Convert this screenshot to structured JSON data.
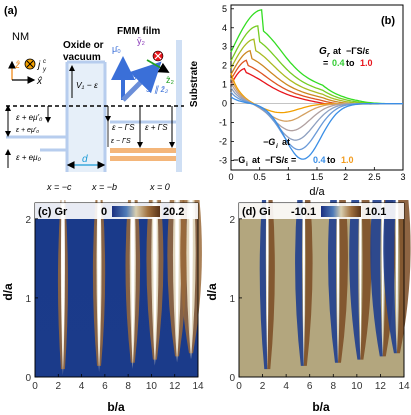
{
  "panel_a": {
    "label": "(a)",
    "nm": "NM",
    "oxide": [
      "Oxide or",
      "vacuum"
    ],
    "fmm": "FMM film",
    "substrate": "Substrate",
    "x_hat": "x̂",
    "z_hat": "ẑ",
    "jy": "j",
    "jy_sup": "c",
    "jy_sub": "y",
    "mu0": "μ̄₀",
    "y2": "ȳ₂",
    "z2": "ẑ₂",
    "theta": "θ",
    "s_par": "S ∥ ẑ₂",
    "v1": "V₁ − ε",
    "eps_left_top": "ε + eμ'₀",
    "eps_left_bot": "ε + eμ₀",
    "eps_left_mid": "ε + eμ'₀",
    "eps_gs_top": "ε − ΓS",
    "eps_gs_bot": "ε − ΓS",
    "eps_plus": "ε + ΓS",
    "d": "d",
    "x_c": "x = −c",
    "x_b": "x = −b",
    "x_0": "x = 0"
  },
  "panel_b": {
    "label": "(b)",
    "xlabel": "d/a",
    "gr_legend": [
      "G",
      "r",
      "at",
      "−ΓS/ε"
    ],
    "gr_range": [
      "= ",
      "0.4",
      " to ",
      "1.0"
    ],
    "gi_legend": [
      "−G",
      "i",
      "at",
      "−ΓS/ε = ",
      "0.4",
      " to ",
      "1.0"
    ],
    "xticks": [
      "0",
      "0.5",
      "1",
      "1.5",
      "2",
      "2.5",
      "3"
    ],
    "yticks": [
      "5",
      "4",
      "3",
      "2",
      "1",
      "0",
      "-1",
      "-2",
      "-3"
    ]
  },
  "panel_c": {
    "label": "(c) Gr",
    "min": "0",
    "max": "20.2",
    "xlabel": "b/a",
    "ylabel": "d/a",
    "xticks": [
      "0",
      "2",
      "4",
      "6",
      "8",
      "10",
      "12",
      "14"
    ],
    "yticks": [
      "0",
      "1",
      "2"
    ]
  },
  "panel_d": {
    "label": "(d) Gi",
    "min": "-10.1",
    "max": "10.1",
    "xlabel": "b/a",
    "ylabel": "d/a",
    "xticks": [
      "0",
      "2",
      "4",
      "6",
      "8",
      "10",
      "12",
      "14"
    ],
    "yticks": [
      "0",
      "1",
      "2"
    ]
  },
  "colors": {
    "accent_green": "#33cc33",
    "accent_red": "#e8141b",
    "accent_blue": "#3a8ee6",
    "accent_orange": "#f29b1d",
    "axis_orange": "#ff8c1a",
    "heat_low": "#1a3a8a",
    "heat_mid": "#b9ab86",
    "heat_high": "#ffffff",
    "heat_brown": "#8b5a2b"
  },
  "chart_data": [
    {
      "type": "line",
      "xlabel": "d/a",
      "xlim": [
        0,
        3
      ],
      "ylim": [
        -3.5,
        5.2
      ],
      "series": [
        {
          "color": "#33dd22",
          "peak": 4.95,
          "peak_x": 0.55
        },
        {
          "color": "#77cc22",
          "peak": 4.1,
          "peak_x": 0.48
        },
        {
          "color": "#aabb22",
          "peak": 3.4,
          "peak_x": 0.42
        },
        {
          "color": "#cc8822",
          "peak": 2.8,
          "peak_x": 0.36
        },
        {
          "color": "#dd5522",
          "peak": 2.3,
          "peak_x": 0.3
        },
        {
          "color": "#e8141b",
          "peak": 1.85,
          "peak_x": 0.25
        },
        {
          "color": "#f2a000",
          "trough": -0.5,
          "trough_x": 0.85
        },
        {
          "color": "#d4a060",
          "trough": -0.95,
          "trough_x": 0.95
        },
        {
          "color": "#b0a0a0",
          "trough": -1.45,
          "trough_x": 1.05
        },
        {
          "color": "#8ea0c0",
          "trough": -1.95,
          "trough_x": 1.12
        },
        {
          "color": "#6a9ad8",
          "trough": -2.45,
          "trough_x": 1.18
        },
        {
          "color": "#3a8ee6",
          "trough": -2.95,
          "trough_x": 1.25
        }
      ]
    }
  ]
}
